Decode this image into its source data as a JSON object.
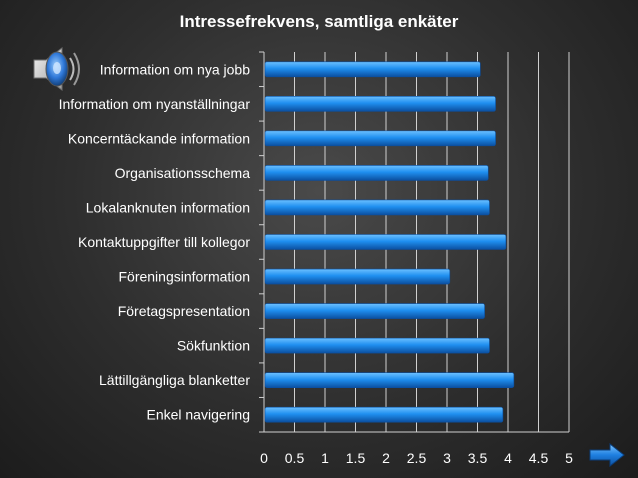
{
  "colors": {
    "bar": "#1f8ff0",
    "bar_dark": "#0b4fa0",
    "bar_light": "#6cc0ff",
    "text": "#ffffff",
    "grid": "#d0d0d0"
  },
  "icons": {
    "speaker": "speaker-icon",
    "next": "arrow-right-icon"
  },
  "chart_data": {
    "type": "bar",
    "orientation": "horizontal",
    "title": "Intressefrekvens, samtliga enkäter",
    "categories": [
      "Information om nya jobb",
      "Information om nyanställningar",
      "Koncerntäckande information",
      "Organisationsschema",
      "Lokalanknuten information",
      "Kontaktuppgifter till kollegor",
      "Föreningsinformation",
      "Företagspresentation",
      "Sökfunktion",
      "Lättillgängliga blanketter",
      "Enkel navigering"
    ],
    "values": [
      3.53,
      3.78,
      3.78,
      3.66,
      3.68,
      3.95,
      3.03,
      3.6,
      3.68,
      4.08,
      3.9
    ],
    "xlim": [
      0,
      5
    ],
    "xticks": [
      "0",
      "0.5",
      "1",
      "1.5",
      "2",
      "2.5",
      "3",
      "3.5",
      "4",
      "4.5",
      "5"
    ],
    "xlabel": "",
    "ylabel": "",
    "grid": true,
    "legend": "none"
  }
}
